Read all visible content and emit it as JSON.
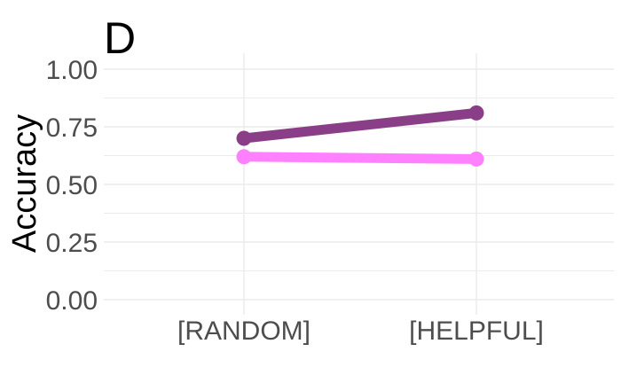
{
  "chart_data": {
    "type": "line",
    "panel_label": "D",
    "ylabel": "Accuracy",
    "xlabel": "",
    "categories": [
      "[RANDOM]",
      "[HELPFUL]"
    ],
    "ylim": [
      0,
      1
    ],
    "y_ticks": [
      "0.00",
      "0.25",
      "0.50",
      "0.75",
      "1.00"
    ],
    "y_tick_values": [
      0,
      0.25,
      0.5,
      0.75,
      1.0
    ],
    "grid": true,
    "legend": "none",
    "series": [
      {
        "values": [
          0.7,
          0.81
        ],
        "color": "#8B3E88"
      },
      {
        "values": [
          0.62,
          0.61
        ],
        "color": "#FF80FF"
      }
    ]
  }
}
